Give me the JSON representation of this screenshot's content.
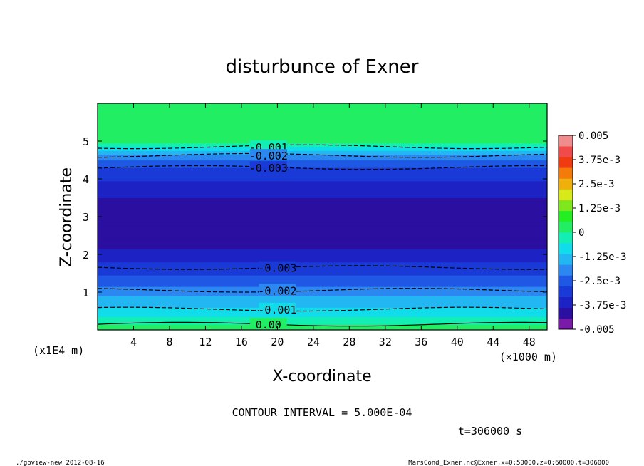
{
  "chart_data": {
    "type": "heatmap",
    "title": "disturbunce of Exner",
    "xlabel": "X-coordinate",
    "ylabel": "Z-coordinate",
    "x_unit": "(×1000 m)",
    "y_unit": "(x1E4 m)",
    "xlim": [
      0,
      50
    ],
    "ylim": [
      0,
      6
    ],
    "x_ticks": [
      4,
      8,
      12,
      16,
      20,
      24,
      28,
      32,
      36,
      40,
      44,
      48
    ],
    "y_ticks": [
      1,
      2,
      3,
      4,
      5
    ],
    "colorbar": {
      "labels": [
        "0.005",
        "3.75e-3",
        "2.5e-3",
        "1.25e-3",
        "0",
        "-1.25e-3",
        "-2.5e-3",
        "-3.75e-3",
        "-0.005"
      ],
      "range": [
        -0.005,
        0.005
      ],
      "colors": [
        "#7a1aa8",
        "#2a0fa0",
        "#1c22c4",
        "#1a3ad8",
        "#1f58e4",
        "#2a88f0",
        "#22b6f2",
        "#10dcea",
        "#12eeb4",
        "#22ee64",
        "#22ee22",
        "#7ee81c",
        "#d8e818",
        "#f0b00c",
        "#f47a0a",
        "#f03a10",
        "#f04a4a",
        "#f08c8c"
      ]
    },
    "profile": [
      {
        "z": 0.0,
        "value": 0.0004
      },
      {
        "z": 0.15,
        "value": 0.0
      },
      {
        "z": 0.3,
        "value": -0.0004
      },
      {
        "z": 0.5,
        "value": -0.0009
      },
      {
        "z": 0.7,
        "value": -0.0013
      },
      {
        "z": 0.9,
        "value": -0.0017
      },
      {
        "z": 1.1,
        "value": -0.0021
      },
      {
        "z": 1.3,
        "value": -0.0025
      },
      {
        "z": 1.55,
        "value": -0.0029
      },
      {
        "z": 1.8,
        "value": -0.0033
      },
      {
        "z": 2.1,
        "value": -0.0038
      },
      {
        "z": 2.4,
        "value": -0.0042
      },
      {
        "z": 2.7,
        "value": -0.0043
      },
      {
        "z": 3.1,
        "value": -0.0042
      },
      {
        "z": 3.5,
        "value": -0.0039
      },
      {
        "z": 3.85,
        "value": -0.0035
      },
      {
        "z": 4.15,
        "value": -0.0031
      },
      {
        "z": 4.35,
        "value": -0.0027
      },
      {
        "z": 4.55,
        "value": -0.0021
      },
      {
        "z": 4.7,
        "value": -0.0015
      },
      {
        "z": 4.8,
        "value": -0.0008
      },
      {
        "z": 4.9,
        "value": -0.0002
      },
      {
        "z": 5.0,
        "value": 0.0001
      },
      {
        "z": 6.0,
        "value": 0.0001
      }
    ],
    "contours": [
      {
        "label": "0.00",
        "z": 0.15,
        "label_x": 19
      },
      {
        "label": "-0.001",
        "z": 0.55,
        "label_x": 20
      },
      {
        "label": "-0.002",
        "z": 1.05,
        "label_x": 20
      },
      {
        "label": "-0.003",
        "z": 1.65,
        "label_x": 20
      },
      {
        "label": "-0.001",
        "z": 4.85,
        "label_x": 19
      },
      {
        "label": "-0.002",
        "z": 4.62,
        "label_x": 19
      },
      {
        "label": "-0.003",
        "z": 4.3,
        "label_x": 19
      }
    ],
    "contour_interval_text": "CONTOUR INTERVAL = 5.000E-04",
    "time_text": "t=306000 s"
  },
  "footer": {
    "left": "./gpview-new   2012-08-16",
    "right": "MarsCond_Exner.nc@Exner,x=0:50000,z=0:60000,t=306000"
  }
}
